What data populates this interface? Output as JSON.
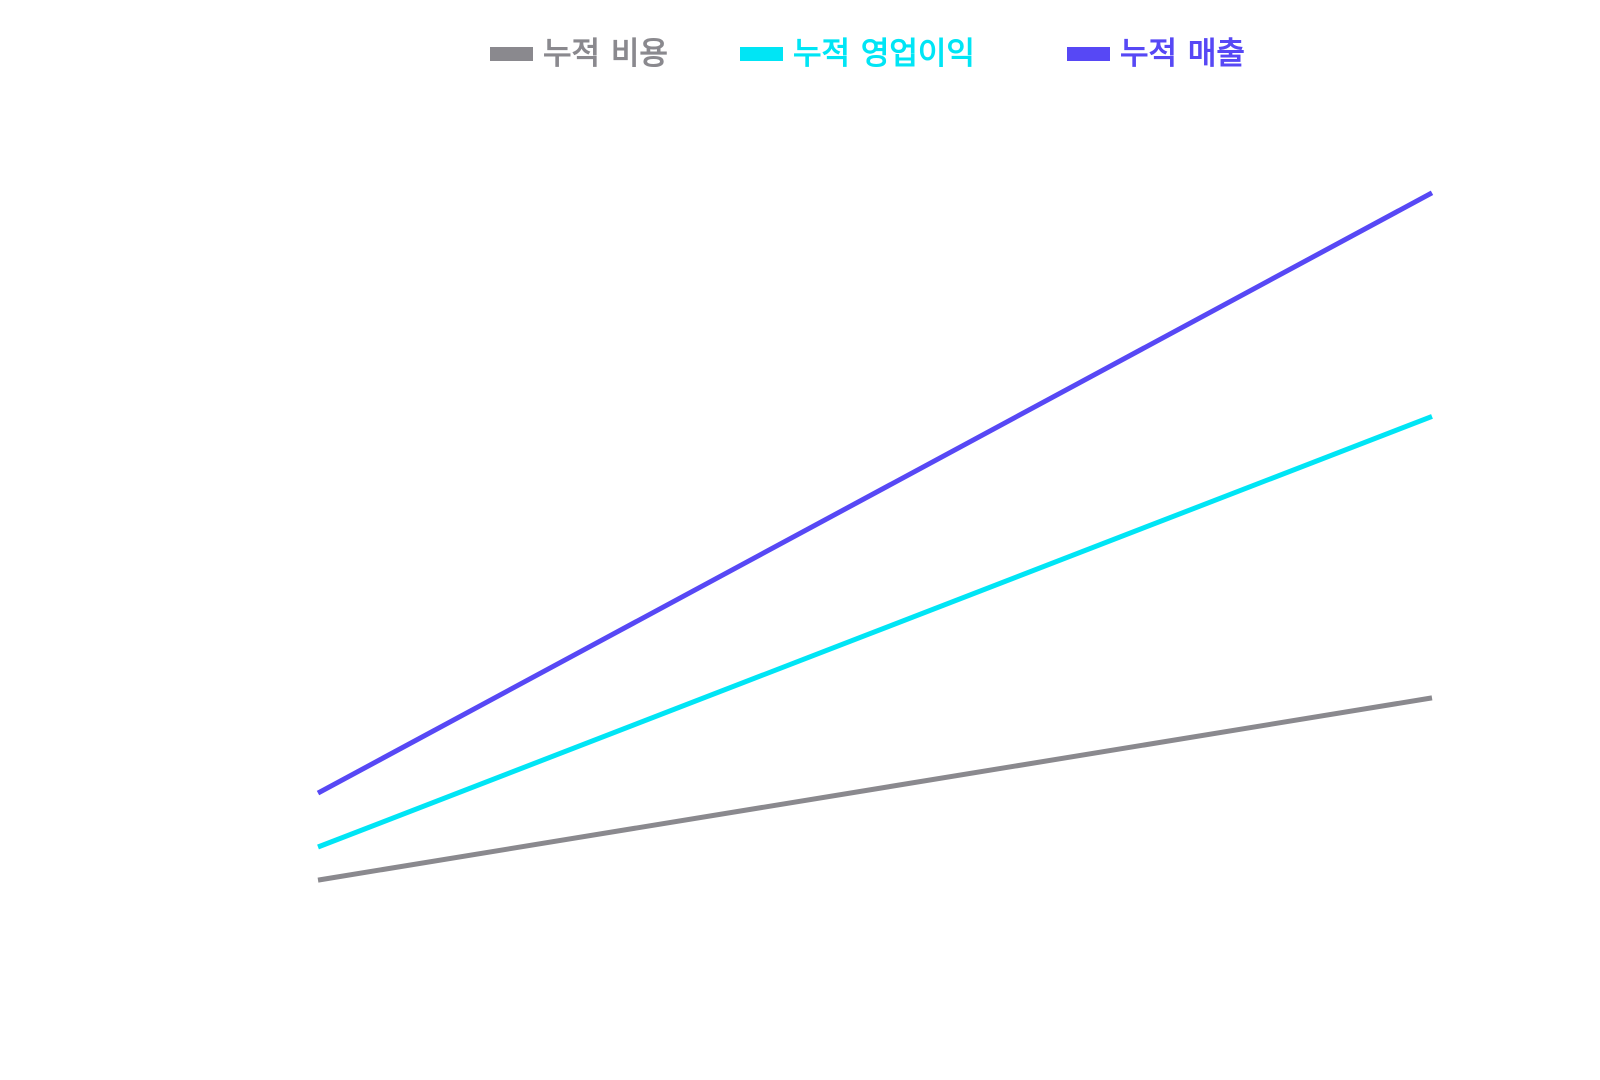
{
  "chart_data": {
    "type": "line",
    "title": "",
    "xlabel": "",
    "ylabel": "",
    "grid": false,
    "axes_visible": false,
    "legend_position": "top-center",
    "x": [
      0,
      1
    ],
    "ylim": [
      0,
      100
    ],
    "series": [
      {
        "name": "누적 비용",
        "color": "#8a898e",
        "values": [
          14,
          36
        ]
      },
      {
        "name": "누적 영업이익",
        "color": "#00e5f5",
        "values": [
          18,
          70
        ]
      },
      {
        "name": "누적 매출",
        "color": "#5748f5",
        "values": [
          24.5,
          97
        ]
      }
    ]
  }
}
